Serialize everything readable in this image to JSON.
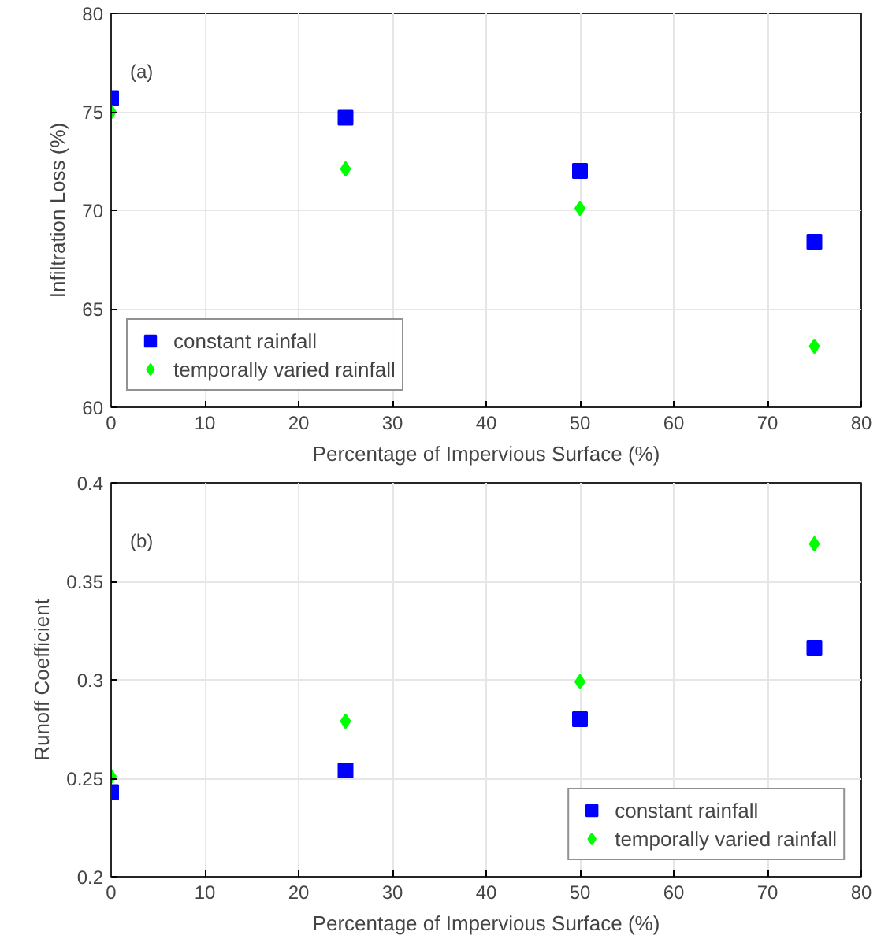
{
  "chart_data": [
    {
      "type": "scatter",
      "xlabel": "Percentage of Impervious Surface (%)",
      "ylabel": "Infiltration Loss (%)",
      "annotations": [
        "(a)"
      ],
      "x": [
        0,
        25,
        50,
        75
      ],
      "xlim": [
        0,
        80
      ],
      "xticks": [
        0,
        10,
        20,
        30,
        40,
        50,
        60,
        70,
        80
      ],
      "ylim": [
        60,
        80
      ],
      "yticks": [
        60,
        65,
        70,
        75,
        80
      ],
      "grid": true,
      "legend": "bottom left",
      "series": [
        {
          "name": "constant rainfall",
          "color": "#0000ff",
          "marker": "square",
          "values": [
            75.7,
            74.7,
            72.0,
            68.4
          ]
        },
        {
          "name": "temporally varied rainfall",
          "color": "#00ff00",
          "marker": "diamond",
          "values": [
            75.0,
            72.1,
            70.1,
            63.1
          ]
        }
      ]
    },
    {
      "type": "scatter",
      "xlabel": "Percentage of Impervious Surface (%)",
      "ylabel": "Runoff Coefficient",
      "annotations": [
        "(b)"
      ],
      "x": [
        0,
        25,
        50,
        75
      ],
      "xlim": [
        0,
        80
      ],
      "xticks": [
        0,
        10,
        20,
        30,
        40,
        50,
        60,
        70,
        80
      ],
      "ylim": [
        0.2,
        0.4
      ],
      "yticks": [
        0.2,
        0.25,
        0.3,
        0.35,
        0.4
      ],
      "grid": true,
      "legend": "bottom right",
      "series": [
        {
          "name": "constant rainfall",
          "color": "#0000ff",
          "marker": "square",
          "values": [
            0.243,
            0.254,
            0.28,
            0.316
          ]
        },
        {
          "name": "temporally varied rainfall",
          "color": "#00ff00",
          "marker": "diamond",
          "values": [
            0.251,
            0.279,
            0.299,
            0.369
          ]
        }
      ]
    }
  ]
}
